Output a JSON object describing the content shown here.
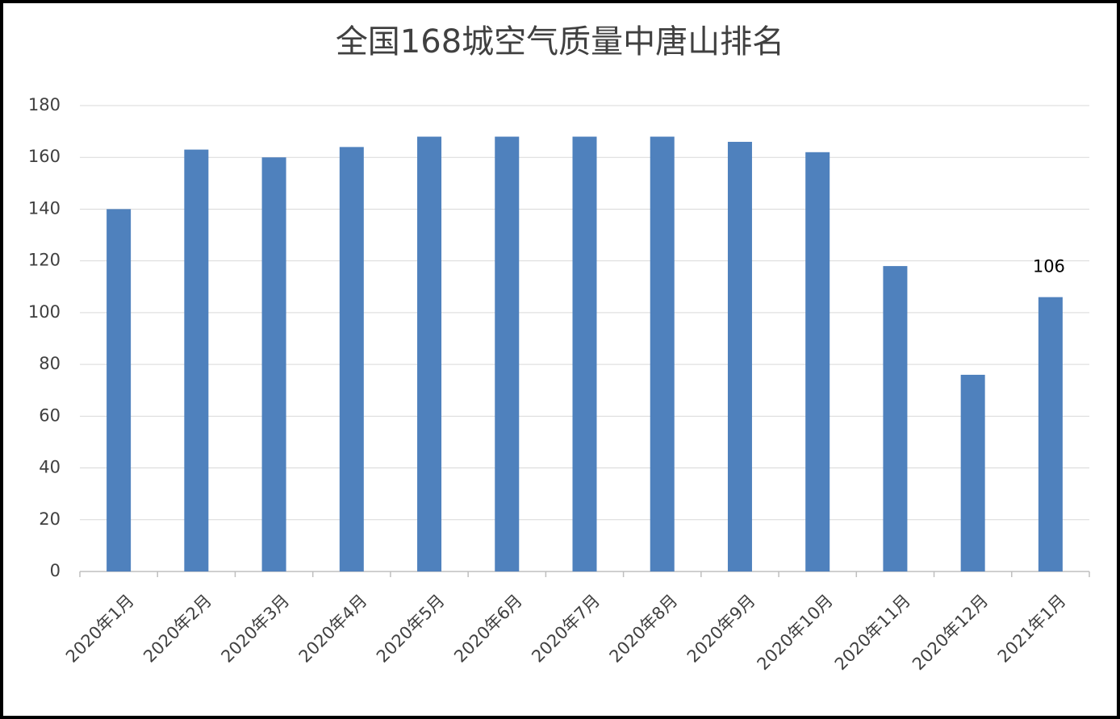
{
  "chart_data": {
    "type": "bar",
    "title": "全国168城空气质量中唐山排名",
    "categories": [
      "2020年1月",
      "2020年2月",
      "2020年3月",
      "2020年4月",
      "2020年5月",
      "2020年6月",
      "2020年7月",
      "2020年8月",
      "2020年9月",
      "2020年10月",
      "2020年11月",
      "2020年12月",
      "2021年1月"
    ],
    "values": [
      140,
      163,
      160,
      164,
      168,
      168,
      168,
      168,
      166,
      162,
      118,
      76,
      106
    ],
    "value_labels": [
      null,
      null,
      null,
      null,
      null,
      null,
      null,
      null,
      null,
      null,
      null,
      null,
      "106"
    ],
    "color": "#4f81bd",
    "ylim": [
      0,
      180
    ],
    "yticks": [
      0,
      20,
      40,
      60,
      80,
      100,
      120,
      140,
      160,
      180
    ],
    "grid": true
  }
}
